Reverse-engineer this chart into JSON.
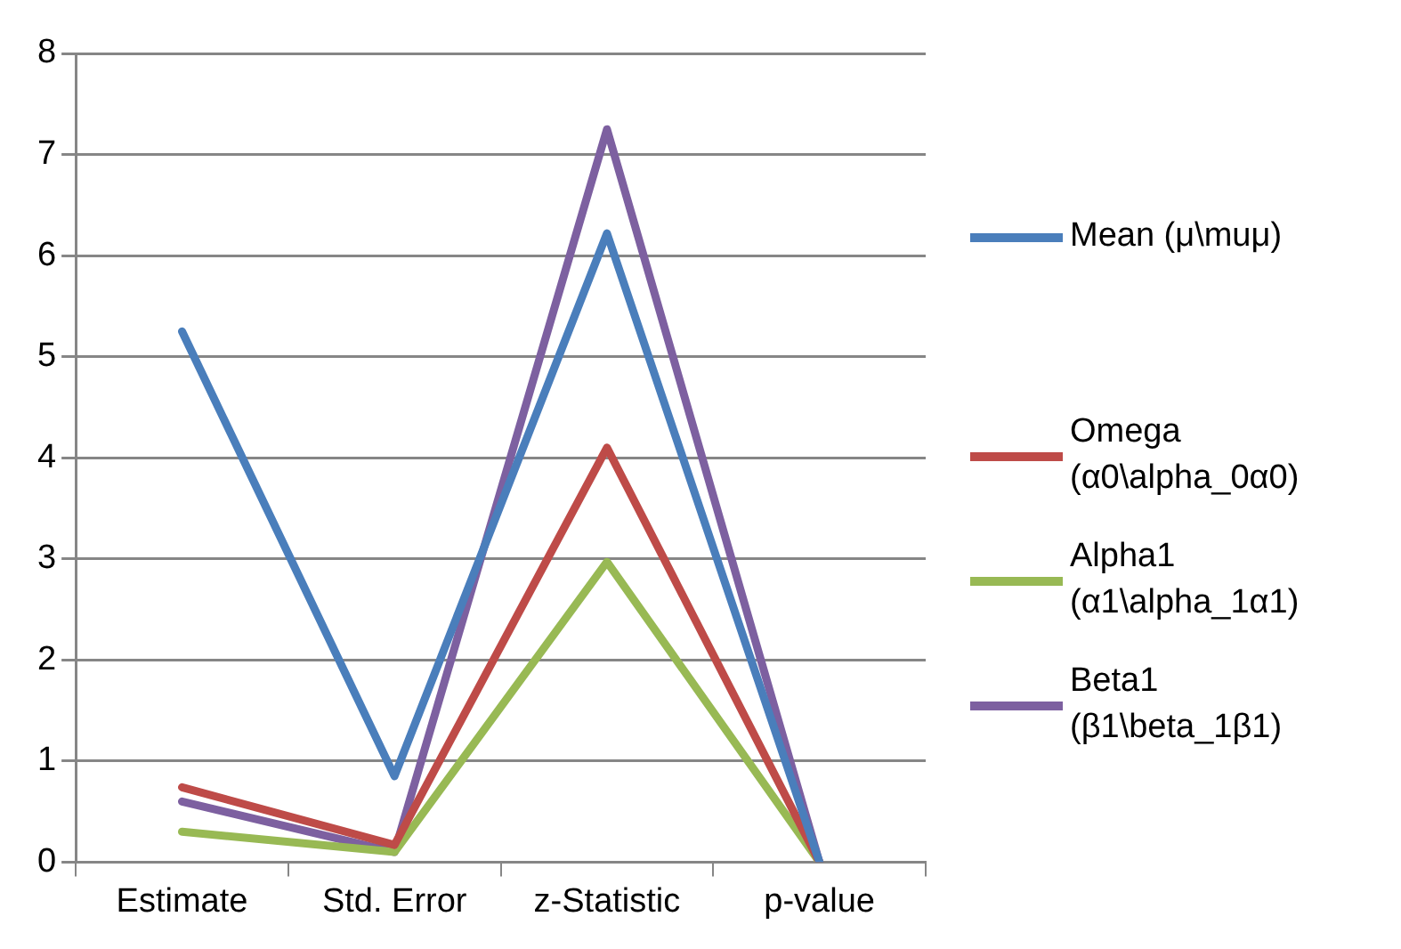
{
  "chart_data": {
    "type": "line",
    "categories": [
      "Estimate",
      "Std. Error",
      "z-Statistic",
      "p-value"
    ],
    "series": [
      {
        "name": "Mean (μ\\muμ)",
        "color": "#4a7ebb",
        "values": [
          5.25,
          0.85,
          6.22,
          0
        ]
      },
      {
        "name": "Omega (α0\\alpha_0α0)",
        "color": "#be4b48",
        "values": [
          0.74,
          0.17,
          4.1,
          0
        ]
      },
      {
        "name": "Alpha1 (α1\\alpha_1α1)",
        "color": "#98b954",
        "values": [
          0.3,
          0.1,
          2.97,
          0
        ]
      },
      {
        "name": "Beta1 (β1\\beta_1β1)",
        "color": "#7d60a0",
        "values": [
          0.6,
          0.1,
          7.25,
          0
        ]
      }
    ],
    "ylim": [
      0,
      8
    ],
    "yticks": [
      0,
      1,
      2,
      3,
      4,
      5,
      6,
      7,
      8
    ],
    "grid": "y",
    "legend": "right",
    "marker": "none",
    "line_style": "solid"
  }
}
